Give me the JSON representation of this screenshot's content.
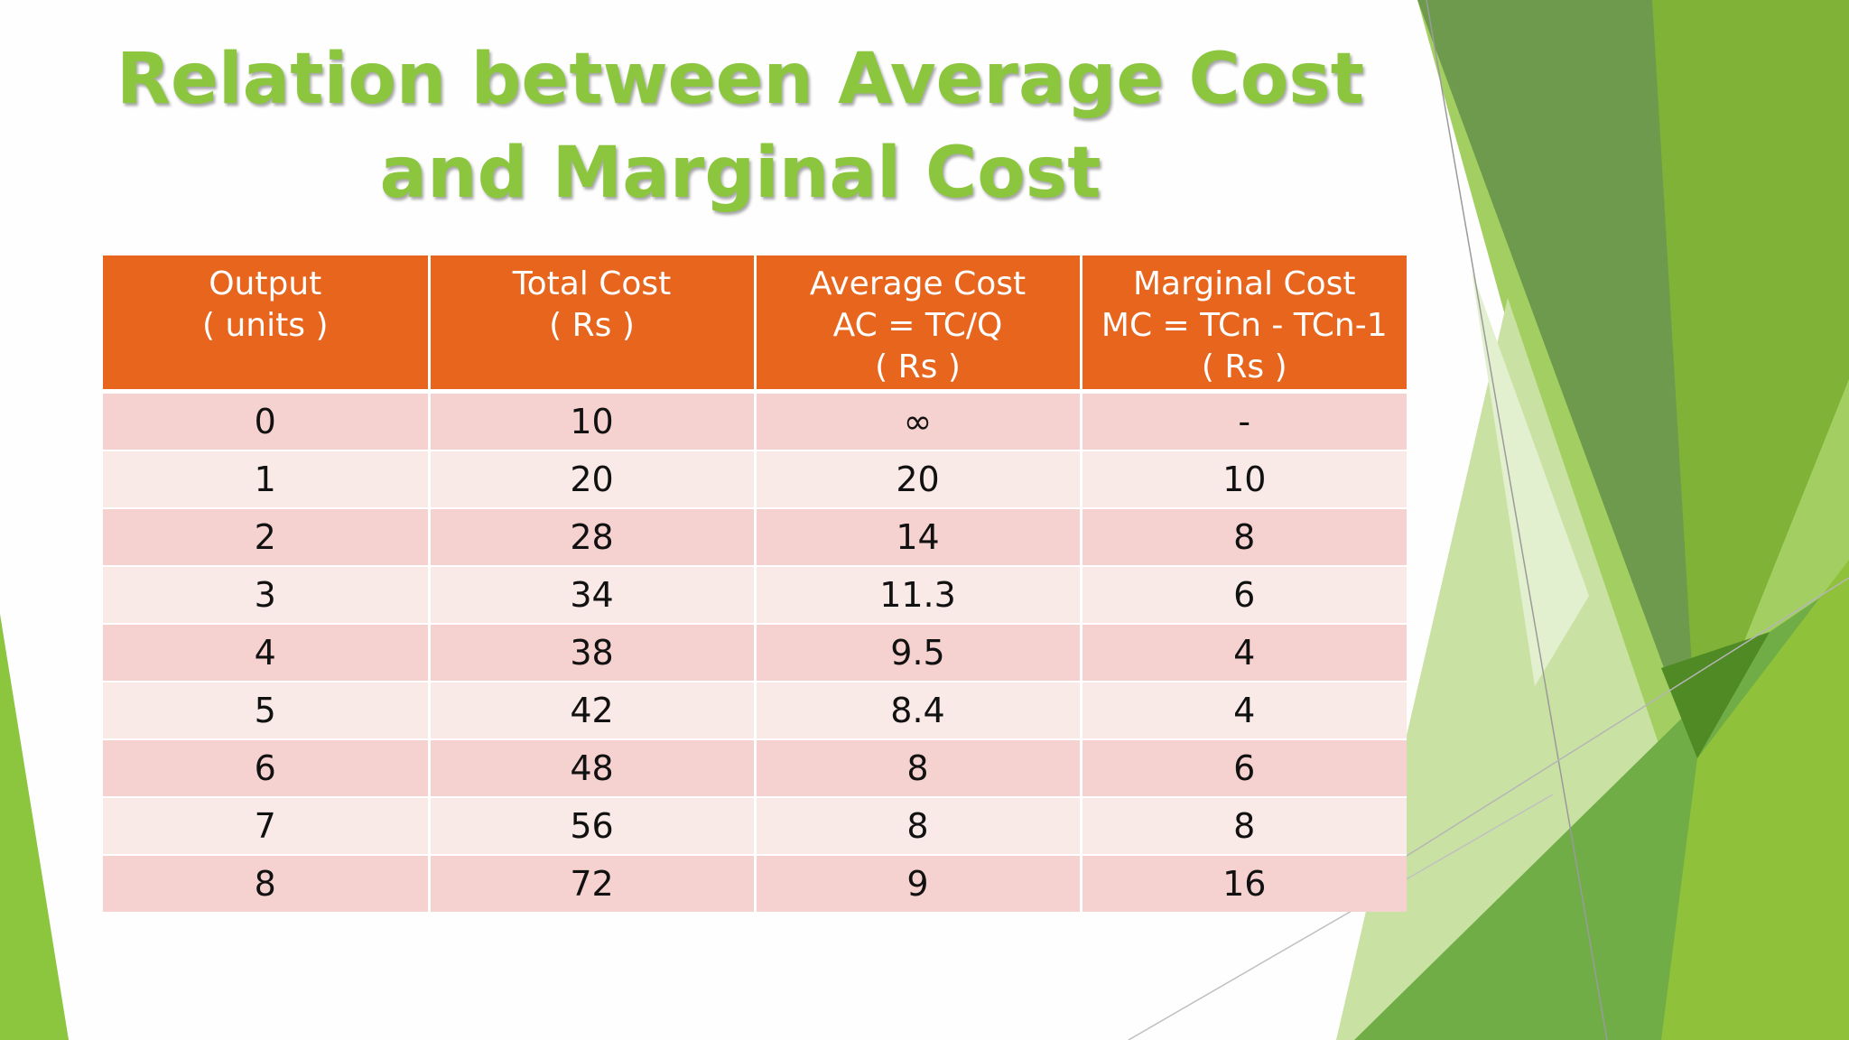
{
  "slide": {
    "title": "Relation between Average Cost and Marginal Cost",
    "accent_colors": {
      "title_green": "#8cc63f",
      "header_orange": "#e8651e",
      "row_odd": "#f5d2cf",
      "row_even": "#f9e9e7"
    }
  },
  "table": {
    "headers": [
      {
        "lines": [
          "Output",
          "( units )"
        ]
      },
      {
        "lines": [
          "Total Cost",
          "( Rs )"
        ]
      },
      {
        "lines": [
          "Average Cost",
          "AC = TC/Q",
          "( Rs )"
        ]
      },
      {
        "lines": [
          "Marginal Cost",
          "MC = TCn - TCn-1",
          "( Rs )"
        ]
      }
    ],
    "rows": [
      [
        "0",
        "10",
        "∞",
        "-"
      ],
      [
        "1",
        "20",
        "20",
        "10"
      ],
      [
        "2",
        "28",
        "14",
        "8"
      ],
      [
        "3",
        "34",
        "11.3",
        "6"
      ],
      [
        "4",
        "38",
        "9.5",
        "4"
      ],
      [
        "5",
        "42",
        "8.4",
        "4"
      ],
      [
        "6",
        "48",
        "8",
        "6"
      ],
      [
        "7",
        "56",
        "8",
        "8"
      ],
      [
        "8",
        "72",
        "9",
        "16"
      ]
    ]
  }
}
